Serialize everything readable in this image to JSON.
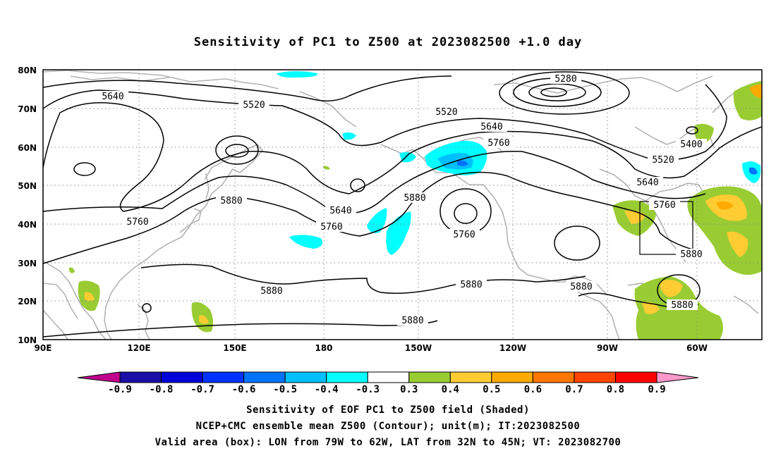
{
  "title": "Sensitivity of PC1 to Z500 at 2023082500 +1.0 day",
  "axes": {
    "lat_labels": [
      "80N",
      "70N",
      "60N",
      "50N",
      "40N",
      "30N",
      "20N",
      "10N"
    ],
    "lon_labels": [
      "90E",
      "120E",
      "150E",
      "180",
      "150W",
      "120W",
      "90W",
      "60W"
    ]
  },
  "contour_labels": [
    "5280",
    "5400",
    "5520",
    "5520",
    "5520",
    "5640",
    "5640",
    "5640",
    "5640",
    "5760",
    "5760",
    "5760",
    "5760",
    "5760",
    "5880",
    "5880",
    "5880",
    "5880",
    "5880",
    "5880",
    "5880",
    "5880"
  ],
  "colorbar": {
    "labels": [
      "-0.9",
      "-0.8",
      "-0.7",
      "-0.6",
      "-0.5",
      "-0.4",
      "-0.3",
      "0.3",
      "0.4",
      "0.5",
      "0.6",
      "0.7",
      "0.8",
      "0.9"
    ],
    "colors": [
      "#1a0fa6",
      "#0000d9",
      "#0033ff",
      "#0073ff",
      "#00bfff",
      "#00ffff",
      "#ffffff",
      "#99cc33",
      "#ffcc33",
      "#ffaa00",
      "#ff7700",
      "#ff4400",
      "#ff0000"
    ],
    "left_arrow_color": "#c0008c",
    "right_arrow_color": "#ff99cc"
  },
  "captions": {
    "line1": "Sensitivity of EOF PC1 to Z500 field (Shaded)",
    "line2": "NCEP+CMC ensemble mean Z500 (Contour); unit(m); IT:2023082500",
    "line3": "Valid area (box): LON from 79W to 62W, LAT from 32N to 45N; VT: 2023082700"
  }
}
